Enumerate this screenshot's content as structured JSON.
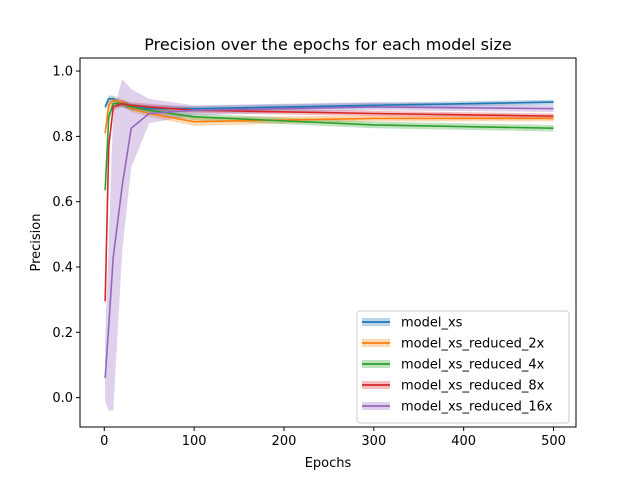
{
  "chart_data": {
    "type": "line",
    "title": "Precision over the epochs for each model size",
    "xlabel": "Epochs",
    "ylabel": "Precision",
    "xlim": [
      -27,
      525
    ],
    "ylim": [
      -0.09,
      1.04
    ],
    "xticks": [
      0,
      100,
      200,
      300,
      400,
      500
    ],
    "yticks": [
      0.0,
      0.2,
      0.4,
      0.6,
      0.8,
      1.0
    ],
    "xtick_labels": [
      "0",
      "100",
      "200",
      "300",
      "400",
      "500"
    ],
    "ytick_labels": [
      "0.0",
      "0.2",
      "0.4",
      "0.6",
      "0.8",
      "1.0"
    ],
    "grid": false,
    "legend_position": "lower right",
    "series": [
      {
        "name": "model_xs",
        "color": "#1f77b4",
        "x": [
          1,
          5,
          10,
          20,
          30,
          50,
          100,
          300,
          500
        ],
        "y": [
          0.89,
          0.915,
          0.915,
          0.9,
          0.89,
          0.885,
          0.885,
          0.895,
          0.905
        ],
        "lower": [
          0.88,
          0.9,
          0.905,
          0.89,
          0.88,
          0.875,
          0.875,
          0.887,
          0.897
        ],
        "upper": [
          0.9,
          0.925,
          0.925,
          0.91,
          0.9,
          0.895,
          0.893,
          0.903,
          0.912
        ]
      },
      {
        "name": "model_xs_reduced_2x",
        "color": "#ff7f0e",
        "x": [
          1,
          5,
          10,
          20,
          30,
          50,
          100,
          300,
          500
        ],
        "y": [
          0.81,
          0.895,
          0.91,
          0.905,
          0.885,
          0.87,
          0.845,
          0.855,
          0.855
        ],
        "lower": [
          0.79,
          0.88,
          0.9,
          0.895,
          0.875,
          0.86,
          0.832,
          0.846,
          0.846
        ],
        "upper": [
          0.83,
          0.91,
          0.92,
          0.915,
          0.895,
          0.88,
          0.858,
          0.864,
          0.864
        ]
      },
      {
        "name": "model_xs_reduced_4x",
        "color": "#2ca02c",
        "x": [
          1,
          5,
          10,
          20,
          30,
          50,
          100,
          300,
          500
        ],
        "y": [
          0.635,
          0.86,
          0.9,
          0.9,
          0.89,
          0.88,
          0.86,
          0.835,
          0.825
        ],
        "lower": [
          0.62,
          0.845,
          0.89,
          0.89,
          0.88,
          0.87,
          0.85,
          0.825,
          0.815
        ],
        "upper": [
          0.65,
          0.875,
          0.91,
          0.91,
          0.9,
          0.89,
          0.87,
          0.845,
          0.835
        ]
      },
      {
        "name": "model_xs_reduced_8x",
        "color": "#d62728",
        "x": [
          1,
          5,
          10,
          20,
          30,
          50,
          100,
          300,
          500
        ],
        "y": [
          0.295,
          0.77,
          0.89,
          0.9,
          0.895,
          0.89,
          0.88,
          0.87,
          0.862
        ],
        "lower": [
          0.29,
          0.75,
          0.88,
          0.89,
          0.885,
          0.88,
          0.872,
          0.862,
          0.855
        ],
        "upper": [
          0.3,
          0.79,
          0.9,
          0.91,
          0.905,
          0.9,
          0.888,
          0.878,
          0.87
        ]
      },
      {
        "name": "model_xs_reduced_16x",
        "color": "#9467bd",
        "x": [
          1,
          5,
          10,
          20,
          30,
          50,
          100,
          300,
          500
        ],
        "y": [
          0.06,
          0.22,
          0.43,
          0.65,
          0.825,
          0.87,
          0.88,
          0.89,
          0.885
        ],
        "lower": [
          -0.01,
          -0.04,
          -0.04,
          0.45,
          0.705,
          0.84,
          0.865,
          0.88,
          0.875
        ],
        "upper": [
          0.18,
          0.48,
          0.88,
          0.975,
          0.945,
          0.915,
          0.895,
          0.905,
          0.895
        ]
      }
    ]
  }
}
